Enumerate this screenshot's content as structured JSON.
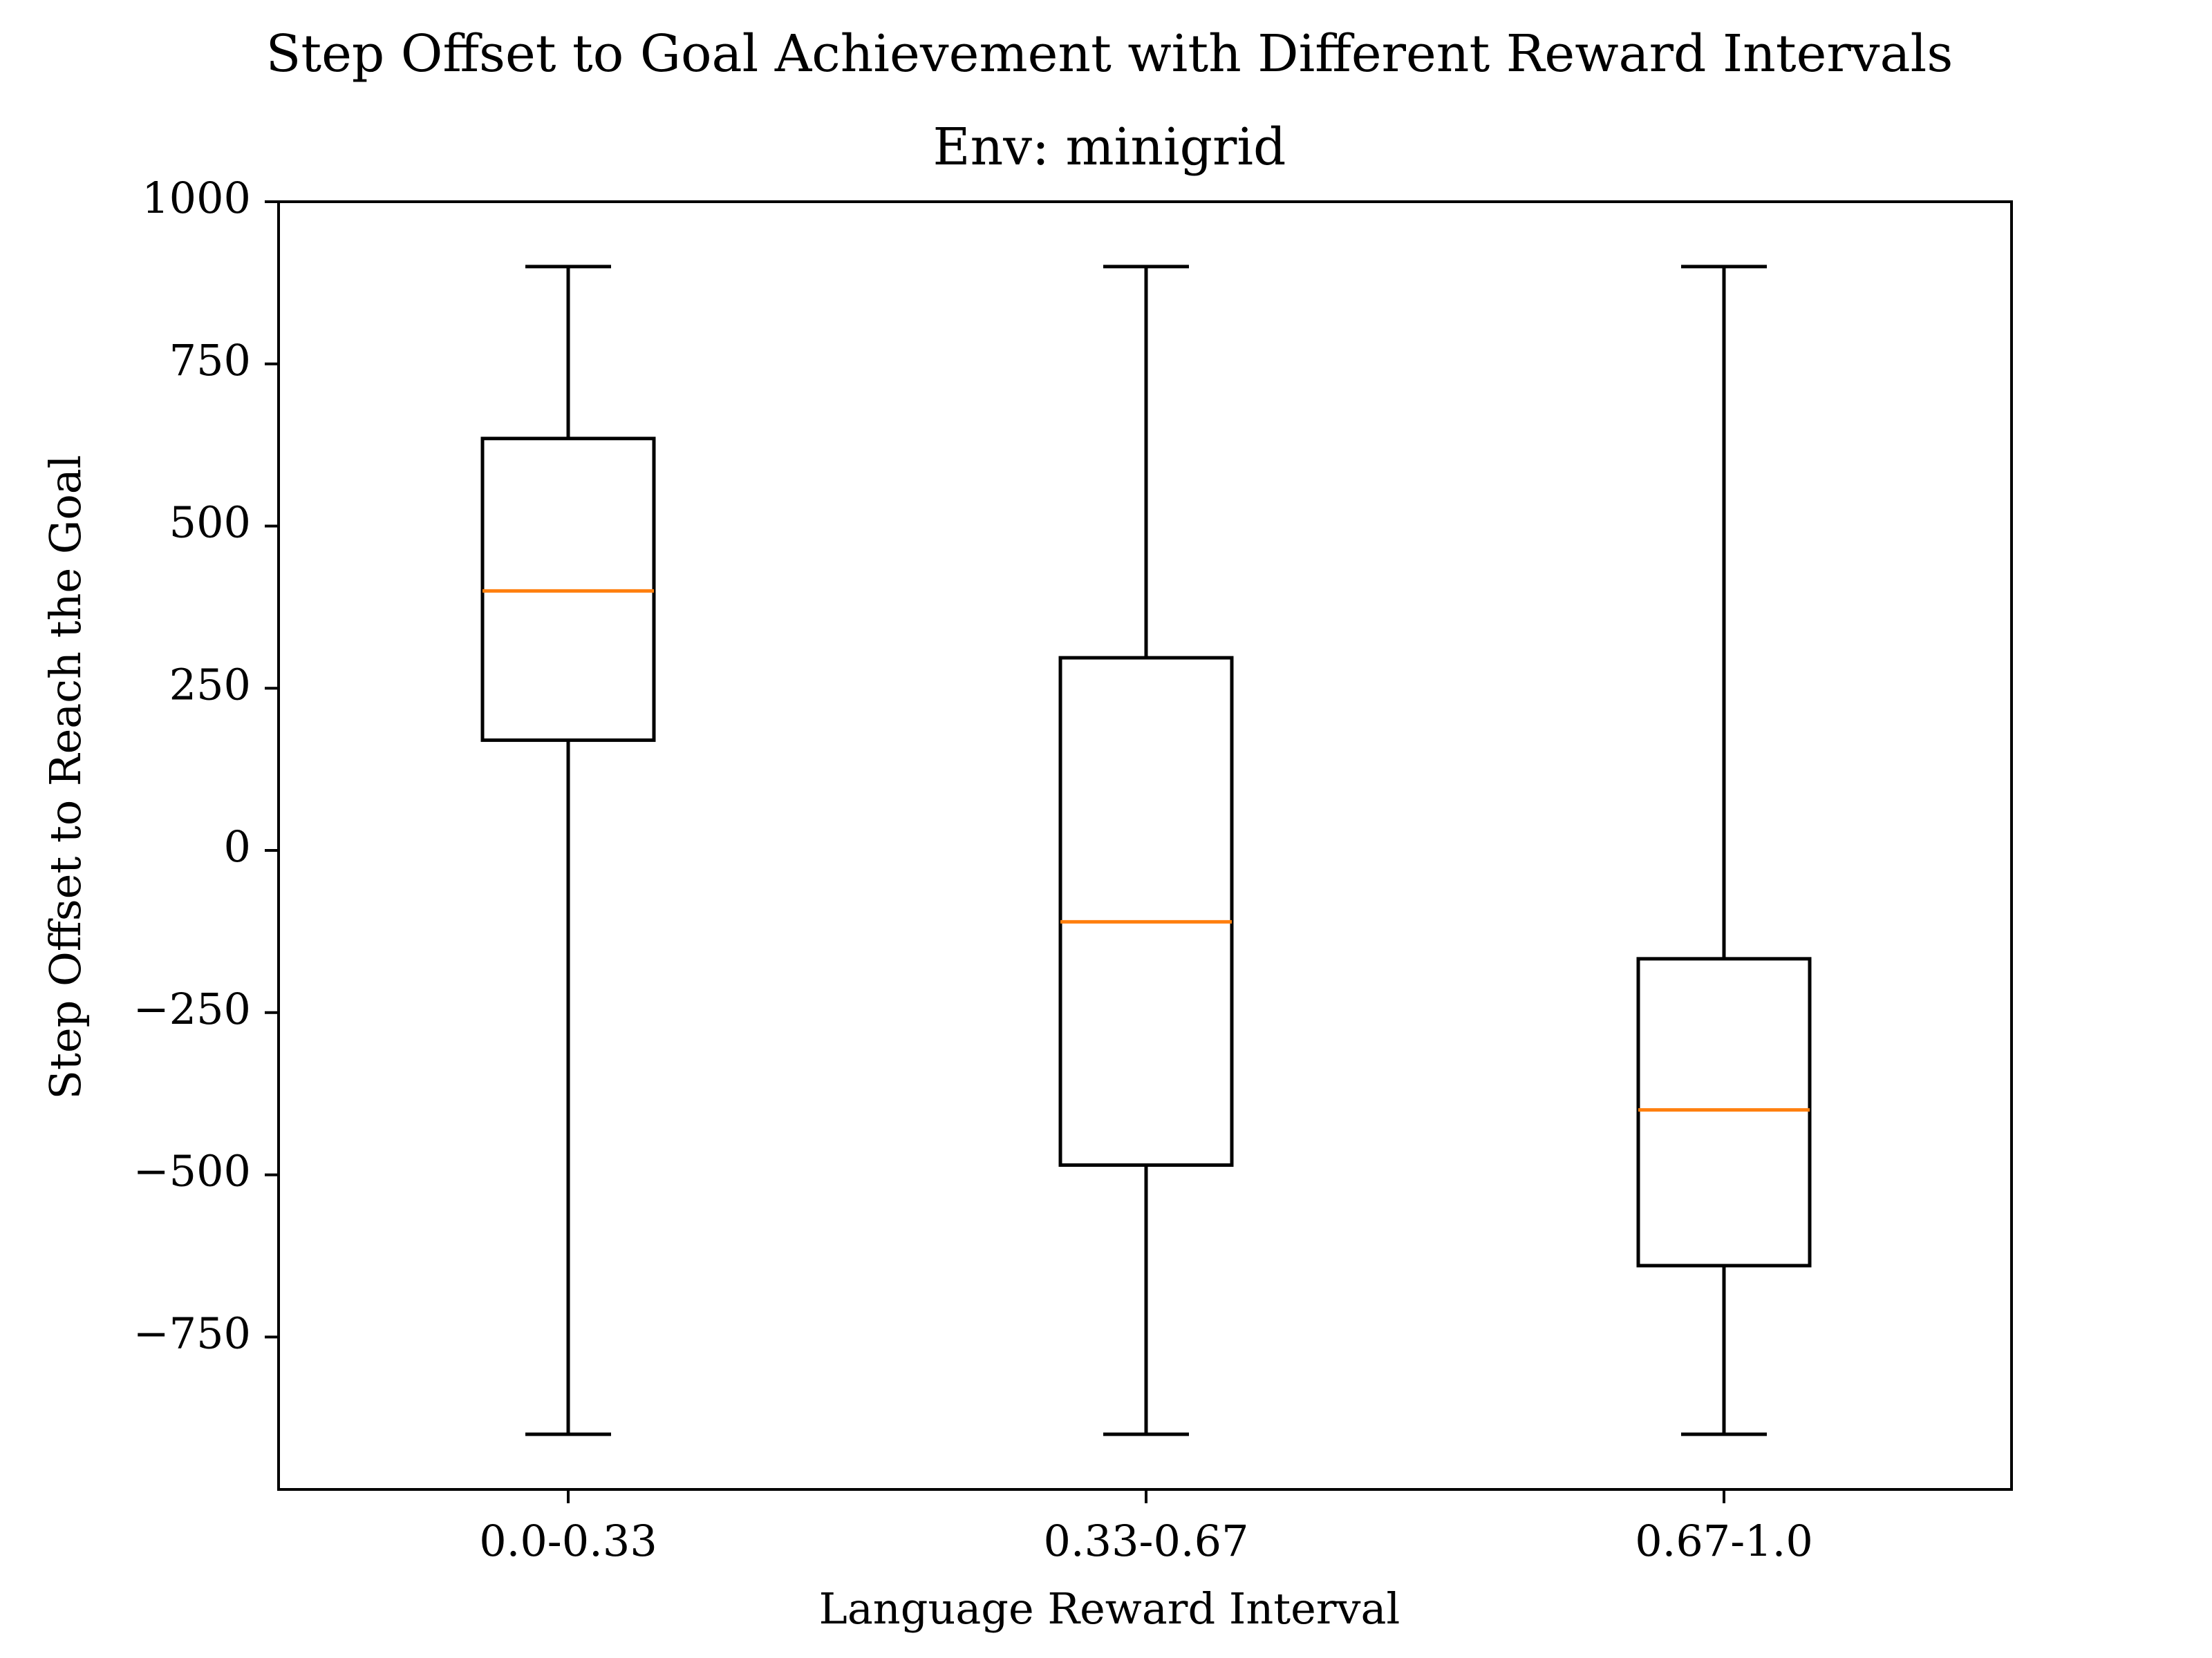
{
  "chart_data": {
    "type": "box",
    "title": "Step Offset to Goal Achievement with Different Reward Intervals",
    "subtitle": "Env: minigrid",
    "xlabel": "Language Reward Interval",
    "ylabel": "Step Offset to Reach the Goal",
    "ylim": [
      -985,
      1000
    ],
    "yticks": [
      -750,
      -500,
      -250,
      0,
      250,
      500,
      750,
      1000
    ],
    "ytick_labels": [
      "−750",
      "−500",
      "−250",
      "0",
      "250",
      "500",
      "750",
      "1000"
    ],
    "categories": [
      "0.0-0.33",
      "0.33-0.67",
      "0.67-1.0"
    ],
    "boxes": [
      {
        "category": "0.0-0.33",
        "whisker_low": -900,
        "q1": 170,
        "median": 400,
        "q3": 635,
        "whisker_high": 900
      },
      {
        "category": "0.33-0.67",
        "whisker_low": -900,
        "q1": -485,
        "median": -110,
        "q3": 297,
        "whisker_high": 900
      },
      {
        "category": "0.67-1.0",
        "whisker_low": -900,
        "q1": -640,
        "median": -400,
        "q3": -167,
        "whisker_high": 900
      }
    ],
    "grid": false,
    "colors": {
      "box": "#000000",
      "median": "#ff7f0e",
      "axes": "#000000"
    }
  }
}
